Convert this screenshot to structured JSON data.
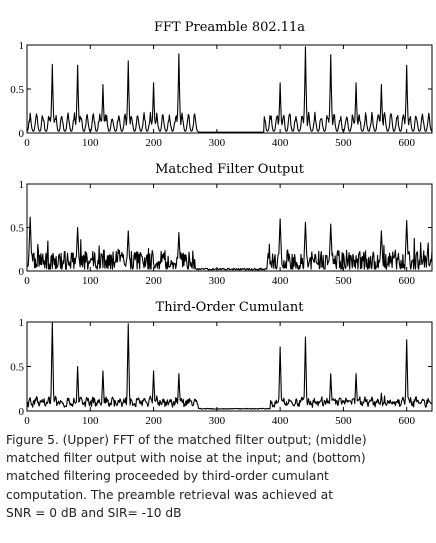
{
  "caption": {
    "lines": [
      "Figure 5. (Upper) FFT of the matched filter output; (middle)",
      "matched filter output with noise at the input; and (bottom)",
      "matched filtering proceeded by third-order cumulant",
      "computation. The preamble retrieval was achieved at",
      "SNR = 0 dB and SIR= -10 dB"
    ]
  },
  "chart_data": [
    {
      "type": "line",
      "title": "FFT Preamble 802.11a",
      "xlim": [
        0,
        640
      ],
      "ylim": [
        0,
        1
      ],
      "xticks": [
        "0",
        "100",
        "200",
        "300",
        "400",
        "500",
        "600"
      ],
      "yticks": [
        "0",
        "0.5",
        "1"
      ],
      "grid": false,
      "signal": "spiky-periodic",
      "active_ranges": [
        [
          0,
          270
        ],
        [
          375,
          640
        ]
      ],
      "peaks": [
        {
          "x": 40,
          "y": 0.78
        },
        {
          "x": 80,
          "y": 0.77
        },
        {
          "x": 120,
          "y": 0.55
        },
        {
          "x": 160,
          "y": 0.82
        },
        {
          "x": 200,
          "y": 0.57
        },
        {
          "x": 240,
          "y": 0.9
        },
        {
          "x": 400,
          "y": 0.57
        },
        {
          "x": 440,
          "y": 0.98
        },
        {
          "x": 480,
          "y": 0.89
        },
        {
          "x": 520,
          "y": 0.57
        },
        {
          "x": 560,
          "y": 0.55
        },
        {
          "x": 600,
          "y": 0.77
        }
      ]
    },
    {
      "type": "line",
      "title": "Matched Filter Output",
      "xlim": [
        0,
        640
      ],
      "ylim": [
        0,
        1
      ],
      "xticks": [
        "0",
        "100",
        "200",
        "300",
        "400",
        "500",
        "600"
      ],
      "yticks": [
        "0",
        "0.5",
        "1"
      ],
      "grid": false,
      "signal": "noisy",
      "active_ranges": [
        [
          0,
          265
        ],
        [
          380,
          640
        ]
      ],
      "peaks": [
        {
          "x": 5,
          "y": 0.62
        },
        {
          "x": 80,
          "y": 0.5
        },
        {
          "x": 160,
          "y": 0.46
        },
        {
          "x": 240,
          "y": 0.44
        },
        {
          "x": 400,
          "y": 0.6
        },
        {
          "x": 440,
          "y": 0.56
        },
        {
          "x": 480,
          "y": 0.54
        },
        {
          "x": 560,
          "y": 0.46
        },
        {
          "x": 600,
          "y": 0.58
        }
      ]
    },
    {
      "type": "line",
      "title": "Third-Order Cumulant",
      "xlim": [
        0,
        640
      ],
      "ylim": [
        0,
        1
      ],
      "xticks": [
        "0",
        "100",
        "200",
        "300",
        "400",
        "500",
        "600"
      ],
      "yticks": [
        "0",
        "0.5",
        "1"
      ],
      "grid": false,
      "signal": "sparse-peaks",
      "active_ranges": [
        [
          0,
          270
        ],
        [
          385,
          640
        ]
      ],
      "peaks": [
        {
          "x": 40,
          "y": 1.0
        },
        {
          "x": 80,
          "y": 0.5
        },
        {
          "x": 120,
          "y": 0.45
        },
        {
          "x": 160,
          "y": 0.98
        },
        {
          "x": 200,
          "y": 0.45
        },
        {
          "x": 240,
          "y": 0.42
        },
        {
          "x": 400,
          "y": 0.72
        },
        {
          "x": 440,
          "y": 0.83
        },
        {
          "x": 480,
          "y": 0.42
        },
        {
          "x": 520,
          "y": 0.42
        },
        {
          "x": 560,
          "y": 0.2
        },
        {
          "x": 600,
          "y": 0.8
        }
      ]
    }
  ]
}
